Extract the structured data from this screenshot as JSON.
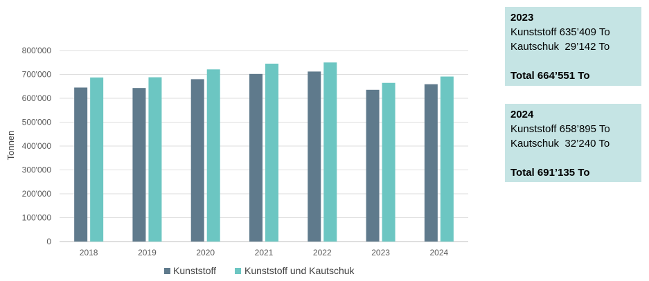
{
  "chart_data": {
    "type": "bar",
    "categories": [
      "2018",
      "2019",
      "2020",
      "2021",
      "2022",
      "2023",
      "2024"
    ],
    "series": [
      {
        "name": "Kunststoff",
        "color": "#5f7a8c",
        "values": [
          645000,
          643000,
          680000,
          702000,
          712000,
          635409,
          658895
        ]
      },
      {
        "name": "Kunststoff und Kautschuk",
        "color": "#6cc6c2",
        "values": [
          687000,
          688000,
          721000,
          745000,
          750000,
          664551,
          691135
        ]
      }
    ],
    "title": "",
    "xlabel": "",
    "ylabel": "Tonnen",
    "ylim": [
      0,
      800000
    ],
    "yticks": [
      "0",
      "100'000",
      "200'000",
      "300'000",
      "400'000",
      "500'000",
      "600'000",
      "700'000",
      "800'000"
    ],
    "grid": true,
    "legend": "bottom"
  },
  "infoboxes": [
    {
      "year": "2023",
      "line1": "Kunststoff 635’409 To",
      "line2": "Kautschuk  29’142 To",
      "total": "Total 664’551 To"
    },
    {
      "year": "2024",
      "line1": "Kunststoff 658’895 To",
      "line2": "Kautschuk  32’240 To",
      "total": "Total 691’135 To"
    }
  ]
}
